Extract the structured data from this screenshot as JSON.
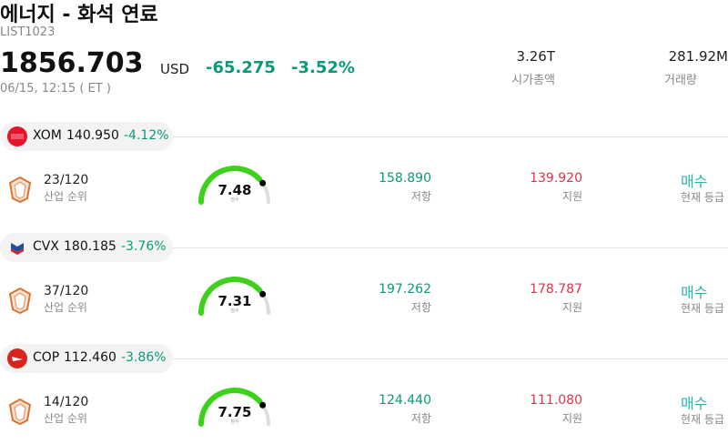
{
  "header": {
    "title": "에너지 - 화석 연료",
    "code": "LIST1023",
    "price": "1856.703",
    "currency": "USD",
    "change": "-65.275",
    "change_pct": "-3.52%",
    "time": "06/15, 12:15 ( ET )"
  },
  "stats": [
    {
      "value": "3.26T",
      "label": "시가총액"
    },
    {
      "value": "281.92M",
      "label": "거래량"
    }
  ],
  "stocks": [
    {
      "ticker": "XOM",
      "price": "140.950",
      "change_pct": "-4.12%",
      "rank": "23/120",
      "rank_label": "산업 순위",
      "score": "7.48",
      "score_label": "점수",
      "resistance": "158.890",
      "resistance_label": "저항",
      "support": "139.920",
      "support_label": "지원",
      "rating": "매수",
      "rating_label": "현재 등급"
    },
    {
      "ticker": "CVX",
      "price": "180.185",
      "change_pct": "-3.76%",
      "rank": "37/120",
      "rank_label": "산업 순위",
      "score": "7.31",
      "score_label": "점수",
      "resistance": "197.262",
      "resistance_label": "저항",
      "support": "178.787",
      "support_label": "지원",
      "rating": "매수",
      "rating_label": "현재 등급"
    },
    {
      "ticker": "COP",
      "price": "112.460",
      "change_pct": "-3.86%",
      "rank": "14/120",
      "rank_label": "산업 순위",
      "score": "7.75",
      "score_label": "점수",
      "resistance": "124.440",
      "resistance_label": "저항",
      "support": "111.080",
      "support_label": "지원",
      "rating": "매수",
      "rating_label": "현재 등급"
    }
  ]
}
